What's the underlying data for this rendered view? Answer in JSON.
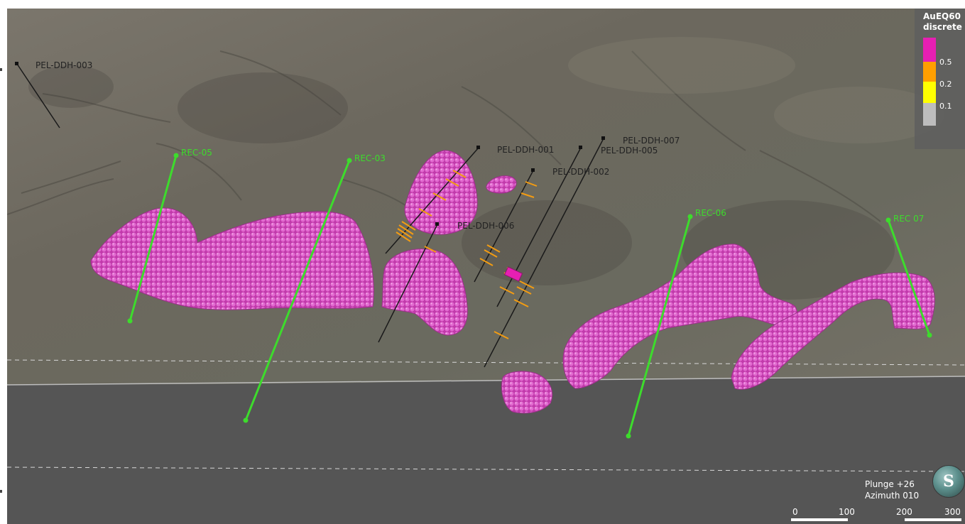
{
  "legend": {
    "title_line1": "AuEQ60",
    "title_line2": "discrete",
    "swatch_colors": [
      "#e61fb3",
      "#ff9f00",
      "#ffff00",
      "#bdbdbd"
    ],
    "labels": [
      "0.5",
      "0.2",
      "0.1"
    ]
  },
  "drillholes_black": [
    "PEL-DDH-003",
    "PEL-DDH-001",
    "PEL-DDH-007",
    "PEL-DDH-005",
    "PEL-DDH-002",
    "PEL-DDH-006"
  ],
  "drillholes_green": [
    "REC-05",
    "REC-03",
    "REC-06",
    "REC 07"
  ],
  "orientation": {
    "plunge": "Plunge +26",
    "azimuth": "Azimuth 010"
  },
  "compass_letter": "S",
  "scale_bar": {
    "ticks": [
      "0",
      "100",
      "200",
      "300"
    ]
  },
  "colors": {
    "orebody": "#c93fb3",
    "green_hole": "#3ddc2c",
    "terrain": "#6e6a60",
    "below_ground": "#555555"
  }
}
